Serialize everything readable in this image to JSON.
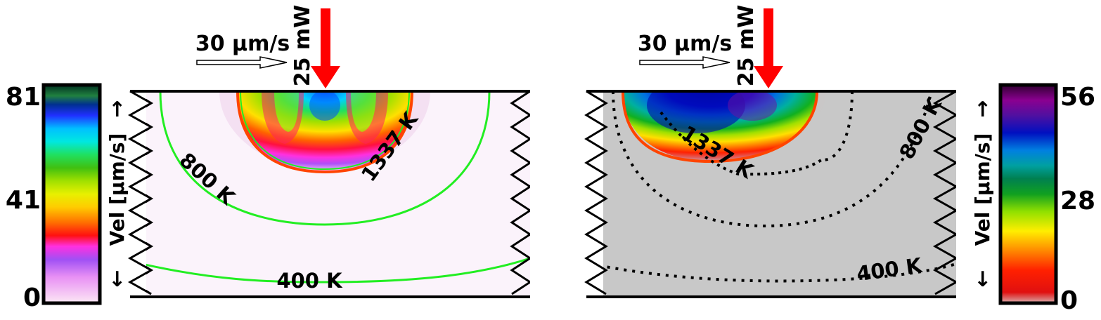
{
  "chart_data": [
    {
      "type": "heatmap",
      "panel": "left",
      "colorbar": {
        "ticks": [
          "81",
          "41",
          "0"
        ],
        "min": 0,
        "max": 81,
        "label": "Vel [µm/s]",
        "up_arrow": "→",
        "down_arrow": "←",
        "position": "left"
      },
      "background": "#fbf3fb",
      "scan_speed_label": "30 µm/s",
      "laser_power_label": "25 mW",
      "isotherms": [
        {
          "label": "1337 K",
          "color": "#ff4400",
          "style": "solid"
        },
        {
          "label": "800 K",
          "color": "#22ee22",
          "style": "solid"
        },
        {
          "label": "400 K",
          "color": "#22ee22",
          "style": "solid"
        }
      ]
    },
    {
      "type": "heatmap",
      "panel": "right",
      "colorbar": {
        "ticks": [
          "56",
          "28",
          "0"
        ],
        "min": 0,
        "max": 56,
        "label": "Vel [µm/s]",
        "up_arrow": "→",
        "down_arrow": "←",
        "position": "right"
      },
      "background": "#c8c8c8",
      "scan_speed_label": "30 µm/s",
      "laser_power_label": "25 mW",
      "isotherms": [
        {
          "label": "1337 K",
          "color": "#ff4400",
          "style": "solid"
        },
        {
          "label": "800 K",
          "color": "#000000",
          "style": "dotted"
        },
        {
          "label": "400 K",
          "color": "#000000",
          "style": "dotted"
        }
      ]
    }
  ],
  "colors": {
    "laser_arrow": "#ff0000",
    "frame": "#000000"
  }
}
